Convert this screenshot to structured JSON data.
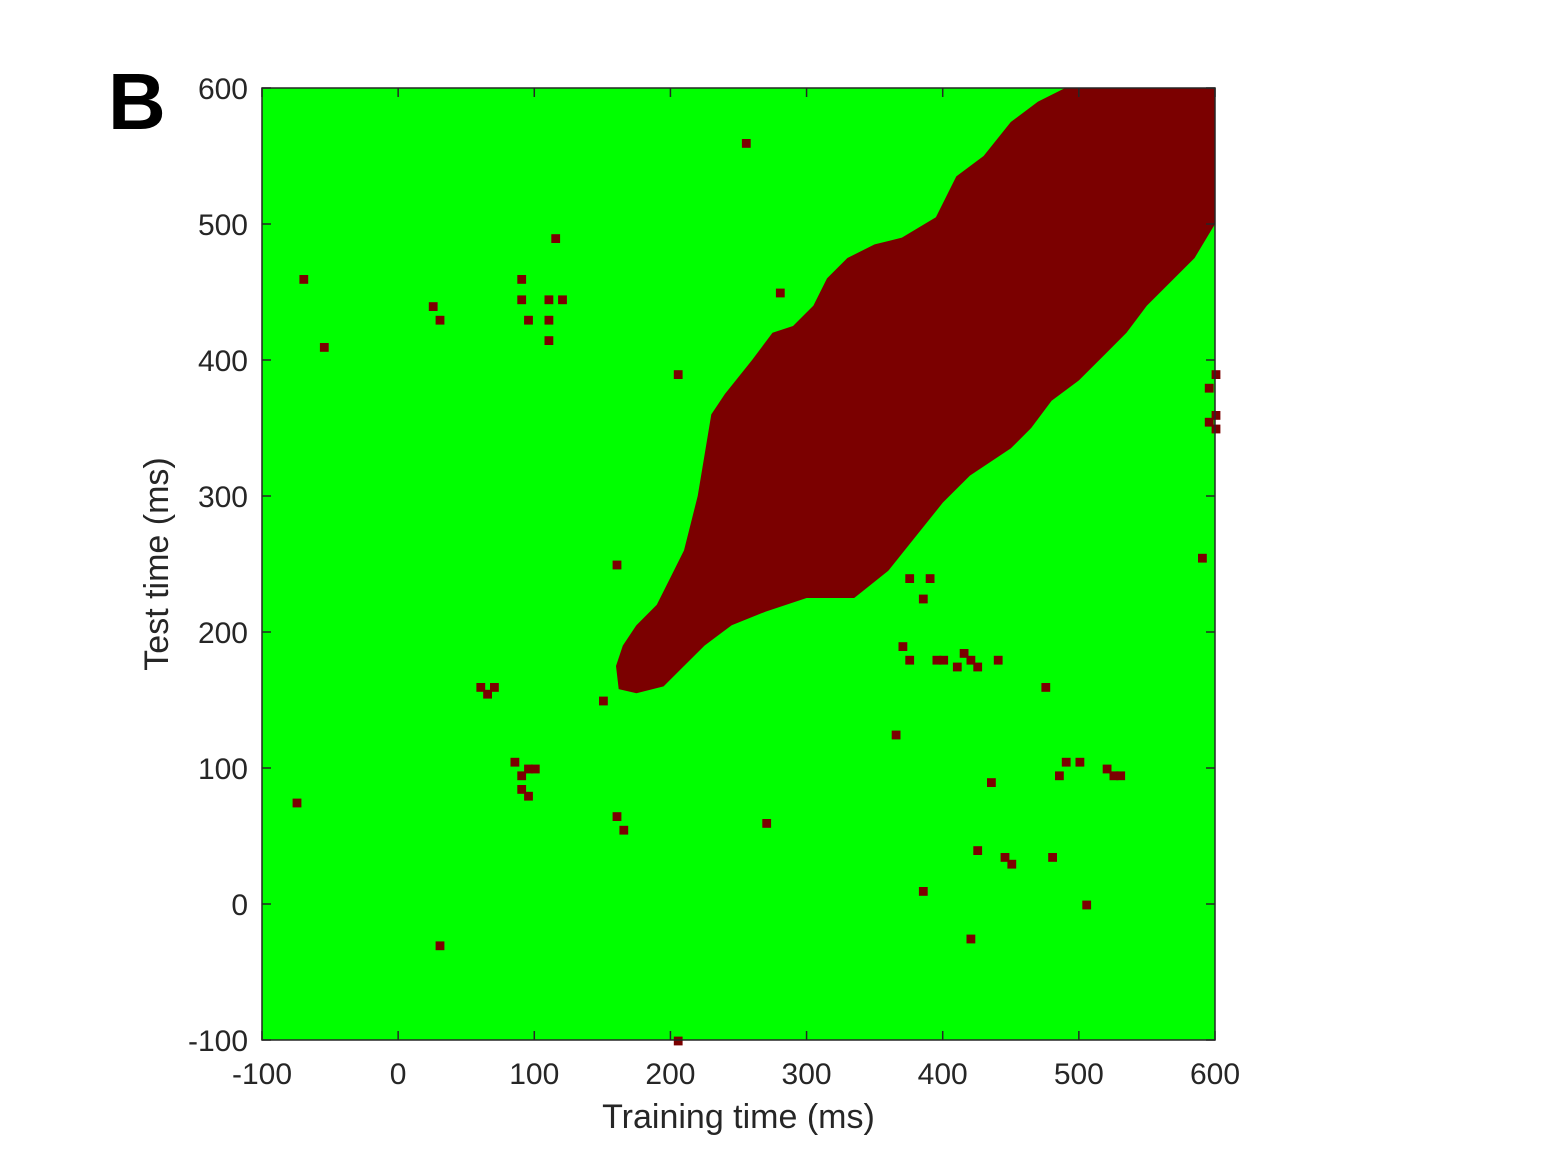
{
  "panel_label": "B",
  "colors": {
    "above": "#7b0000",
    "below": "#00ff00",
    "axis": "#262626"
  },
  "chart_data": {
    "type": "heatmap",
    "title": "",
    "xlabel": "Training time (ms)",
    "ylabel": "Test time (ms)",
    "xlim": [
      -100,
      600
    ],
    "ylim": [
      -100,
      600
    ],
    "xticks": [
      -100,
      0,
      100,
      200,
      300,
      400,
      500,
      600
    ],
    "yticks": [
      -100,
      0,
      100,
      200,
      300,
      400,
      500,
      600
    ],
    "grid": false,
    "colors": {
      "significant": "#7b0000",
      "not_significant": "#00ff00"
    },
    "main_region": {
      "description": "band of significant decoding along the diagonal",
      "upper_edge": [
        [
          160,
          175
        ],
        [
          165,
          190
        ],
        [
          175,
          205
        ],
        [
          190,
          220
        ],
        [
          200,
          240
        ],
        [
          210,
          260
        ],
        [
          220,
          300
        ],
        [
          225,
          330
        ],
        [
          230,
          360
        ],
        [
          240,
          375
        ],
        [
          260,
          400
        ],
        [
          275,
          420
        ],
        [
          290,
          425
        ],
        [
          305,
          440
        ],
        [
          315,
          460
        ],
        [
          330,
          475
        ],
        [
          350,
          485
        ],
        [
          370,
          490
        ],
        [
          395,
          505
        ],
        [
          410,
          535
        ],
        [
          430,
          550
        ],
        [
          450,
          575
        ],
        [
          470,
          590
        ],
        [
          490,
          600
        ],
        [
          600,
          600
        ]
      ],
      "lower_edge": [
        [
          600,
          500
        ],
        [
          585,
          475
        ],
        [
          570,
          460
        ],
        [
          550,
          440
        ],
        [
          535,
          420
        ],
        [
          520,
          405
        ],
        [
          500,
          385
        ],
        [
          480,
          370
        ],
        [
          465,
          350
        ],
        [
          450,
          335
        ],
        [
          420,
          315
        ],
        [
          400,
          295
        ],
        [
          380,
          270
        ],
        [
          360,
          245
        ],
        [
          335,
          225
        ],
        [
          300,
          225
        ],
        [
          270,
          215
        ],
        [
          245,
          205
        ],
        [
          225,
          190
        ],
        [
          210,
          175
        ],
        [
          195,
          160
        ],
        [
          175,
          155
        ],
        [
          162,
          158
        ]
      ]
    },
    "clusters": [
      [
        -75,
        75
      ],
      [
        -70,
        460
      ],
      [
        -55,
        410
      ],
      [
        25,
        440
      ],
      [
        30,
        430
      ],
      [
        30,
        -30
      ],
      [
        60,
        160
      ],
      [
        65,
        155
      ],
      [
        70,
        160
      ],
      [
        85,
        105
      ],
      [
        90,
        95
      ],
      [
        95,
        100
      ],
      [
        100,
        100
      ],
      [
        90,
        85
      ],
      [
        95,
        80
      ],
      [
        90,
        460
      ],
      [
        90,
        445
      ],
      [
        95,
        430
      ],
      [
        110,
        445
      ],
      [
        110,
        430
      ],
      [
        110,
        415
      ],
      [
        115,
        490
      ],
      [
        120,
        445
      ],
      [
        150,
        150
      ],
      [
        160,
        250
      ],
      [
        160,
        65
      ],
      [
        165,
        55
      ],
      [
        205,
        390
      ],
      [
        205,
        -100
      ],
      [
        255,
        560
      ],
      [
        270,
        60
      ],
      [
        280,
        450
      ],
      [
        365,
        125
      ],
      [
        370,
        190
      ],
      [
        375,
        240
      ],
      [
        375,
        180
      ],
      [
        385,
        225
      ],
      [
        385,
        10
      ],
      [
        390,
        240
      ],
      [
        395,
        180
      ],
      [
        400,
        180
      ],
      [
        410,
        175
      ],
      [
        415,
        185
      ],
      [
        420,
        180
      ],
      [
        425,
        40
      ],
      [
        420,
        -25
      ],
      [
        425,
        175
      ],
      [
        435,
        90
      ],
      [
        440,
        180
      ],
      [
        445,
        35
      ],
      [
        450,
        30
      ],
      [
        475,
        160
      ],
      [
        480,
        35
      ],
      [
        485,
        95
      ],
      [
        490,
        105
      ],
      [
        500,
        105
      ],
      [
        505,
        0
      ],
      [
        520,
        100
      ],
      [
        525,
        95
      ],
      [
        530,
        95
      ],
      [
        590,
        255
      ],
      [
        595,
        355
      ],
      [
        600,
        360
      ],
      [
        600,
        390
      ],
      [
        600,
        350
      ],
      [
        595,
        380
      ]
    ],
    "legend": "none"
  }
}
